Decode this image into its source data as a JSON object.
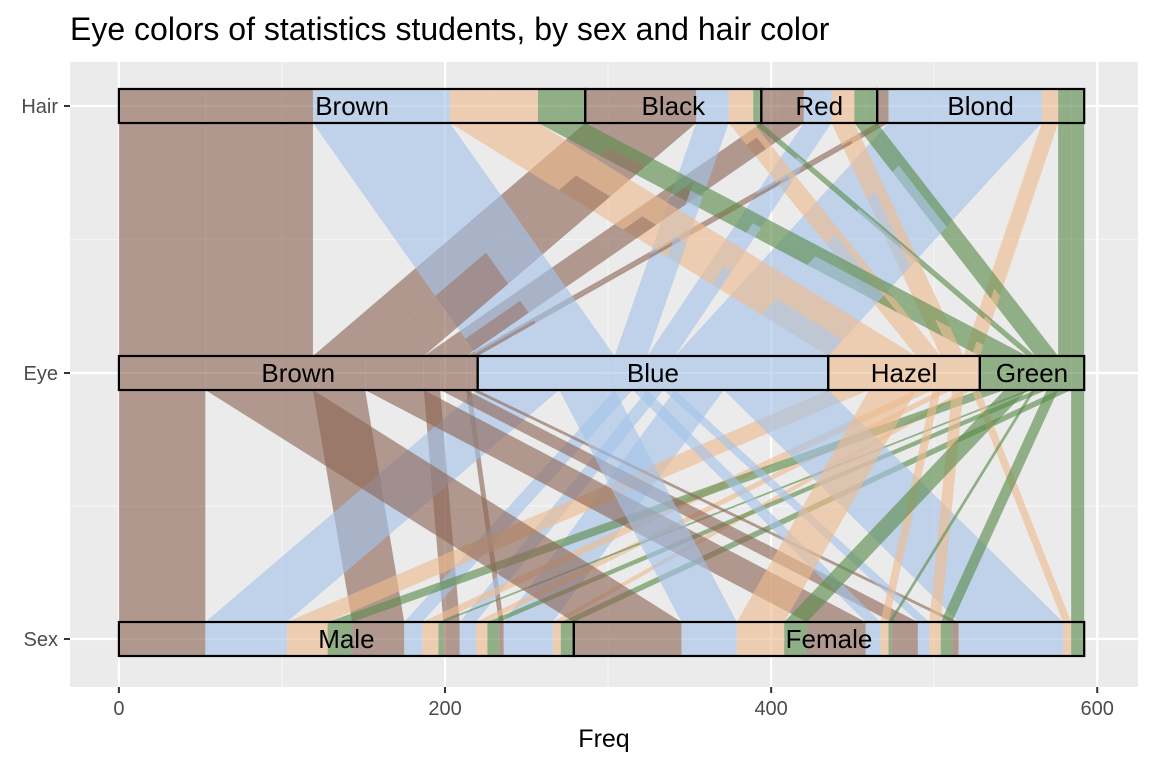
{
  "chart_data": {
    "type": "alluvial",
    "title": "Eye colors of statistics students, by sex and hair color",
    "xlabel": "Freq",
    "ylabel": "",
    "xlim": [
      -30,
      625
    ],
    "x_ticks": [
      0,
      200,
      400,
      600
    ],
    "axes": [
      "Hair",
      "Eye",
      "Sex"
    ],
    "axis_order_top_to_bottom": [
      "Hair",
      "Eye",
      "Sex"
    ],
    "fill_variable": "Eye",
    "fill_colors": {
      "Brown": "#8c6656",
      "Blue": "#a4c4ea",
      "Hazel": "#eebb8e",
      "Green": "#5a8a4a"
    },
    "strata": {
      "Hair": [
        "Brown",
        "Black",
        "Red",
        "Blond"
      ],
      "Eye": [
        "Brown",
        "Blue",
        "Hazel",
        "Green"
      ],
      "Sex": [
        "Male",
        "Female"
      ]
    },
    "grid": true,
    "legend": "none",
    "flows": [
      {
        "Hair": "Black",
        "Eye": "Brown",
        "Sex": "Male",
        "Freq": 32
      },
      {
        "Hair": "Brown",
        "Eye": "Brown",
        "Sex": "Male",
        "Freq": 53
      },
      {
        "Hair": "Red",
        "Eye": "Brown",
        "Sex": "Male",
        "Freq": 10
      },
      {
        "Hair": "Blond",
        "Eye": "Brown",
        "Sex": "Male",
        "Freq": 3
      },
      {
        "Hair": "Black",
        "Eye": "Blue",
        "Sex": "Male",
        "Freq": 11
      },
      {
        "Hair": "Brown",
        "Eye": "Blue",
        "Sex": "Male",
        "Freq": 50
      },
      {
        "Hair": "Red",
        "Eye": "Blue",
        "Sex": "Male",
        "Freq": 10
      },
      {
        "Hair": "Blond",
        "Eye": "Blue",
        "Sex": "Male",
        "Freq": 30
      },
      {
        "Hair": "Black",
        "Eye": "Hazel",
        "Sex": "Male",
        "Freq": 10
      },
      {
        "Hair": "Brown",
        "Eye": "Hazel",
        "Sex": "Male",
        "Freq": 25
      },
      {
        "Hair": "Red",
        "Eye": "Hazel",
        "Sex": "Male",
        "Freq": 7
      },
      {
        "Hair": "Blond",
        "Eye": "Hazel",
        "Sex": "Male",
        "Freq": 5
      },
      {
        "Hair": "Black",
        "Eye": "Green",
        "Sex": "Male",
        "Freq": 3
      },
      {
        "Hair": "Brown",
        "Eye": "Green",
        "Sex": "Male",
        "Freq": 15
      },
      {
        "Hair": "Red",
        "Eye": "Green",
        "Sex": "Male",
        "Freq": 7
      },
      {
        "Hair": "Blond",
        "Eye": "Green",
        "Sex": "Male",
        "Freq": 8
      },
      {
        "Hair": "Black",
        "Eye": "Brown",
        "Sex": "Female",
        "Freq": 36
      },
      {
        "Hair": "Brown",
        "Eye": "Brown",
        "Sex": "Female",
        "Freq": 66
      },
      {
        "Hair": "Red",
        "Eye": "Brown",
        "Sex": "Female",
        "Freq": 16
      },
      {
        "Hair": "Blond",
        "Eye": "Brown",
        "Sex": "Female",
        "Freq": 4
      },
      {
        "Hair": "Black",
        "Eye": "Blue",
        "Sex": "Female",
        "Freq": 9
      },
      {
        "Hair": "Brown",
        "Eye": "Blue",
        "Sex": "Female",
        "Freq": 34
      },
      {
        "Hair": "Red",
        "Eye": "Blue",
        "Sex": "Female",
        "Freq": 7
      },
      {
        "Hair": "Blond",
        "Eye": "Blue",
        "Sex": "Female",
        "Freq": 64
      },
      {
        "Hair": "Black",
        "Eye": "Hazel",
        "Sex": "Female",
        "Freq": 5
      },
      {
        "Hair": "Brown",
        "Eye": "Hazel",
        "Sex": "Female",
        "Freq": 29
      },
      {
        "Hair": "Red",
        "Eye": "Hazel",
        "Sex": "Female",
        "Freq": 7
      },
      {
        "Hair": "Blond",
        "Eye": "Hazel",
        "Sex": "Female",
        "Freq": 5
      },
      {
        "Hair": "Black",
        "Eye": "Green",
        "Sex": "Female",
        "Freq": 2
      },
      {
        "Hair": "Brown",
        "Eye": "Green",
        "Sex": "Female",
        "Freq": 14
      },
      {
        "Hair": "Red",
        "Eye": "Green",
        "Sex": "Female",
        "Freq": 7
      },
      {
        "Hair": "Blond",
        "Eye": "Green",
        "Sex": "Female",
        "Freq": 8
      }
    ]
  }
}
